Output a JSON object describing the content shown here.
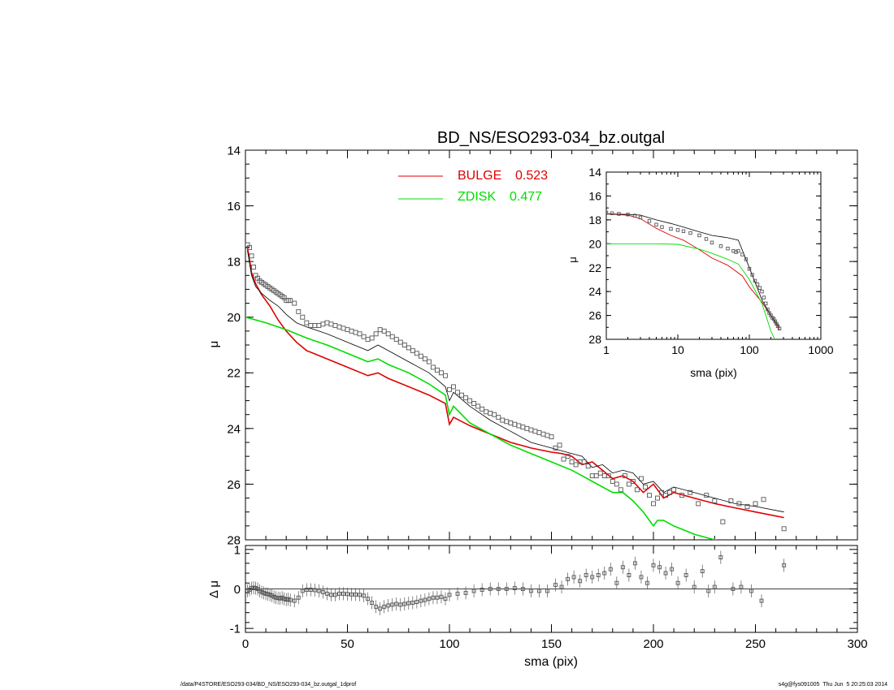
{
  "footer": {
    "left": "/data/P4STORE/ESO293-034/BD_NS/ESO293-034_bz.outgal_1dprof",
    "right": "s4g@fys091005  Thu Jun  5 20:25:03 2014"
  },
  "colors": {
    "bulge": "#e00000",
    "disk": "#00dd00",
    "model": "#000000",
    "data": "#555555"
  },
  "chart_data": [
    {
      "type": "scatter",
      "title": "BD_NS/ESO293-034_bz.outgal",
      "xlabel": "",
      "ylabel": "μ",
      "xlim": [
        0,
        300
      ],
      "ylim": [
        28,
        14
      ],
      "y_reversed": true,
      "x_ticks": [
        0,
        50,
        100,
        150,
        200,
        250,
        300
      ],
      "y_ticks": [
        14,
        16,
        18,
        20,
        22,
        24,
        26,
        28
      ],
      "legend": [
        {
          "name": "BULGE",
          "value": "0.523",
          "color": "#e00000"
        },
        {
          "name": "ZDISK",
          "value": "0.477",
          "color": "#00dd00"
        }
      ],
      "legend_position": "top-center",
      "series": [
        {
          "name": "BULGE",
          "kind": "line",
          "x": [
            1,
            3,
            5,
            8,
            12,
            16,
            20,
            25,
            30,
            40,
            50,
            60,
            65,
            70,
            80,
            90,
            98,
            100,
            102,
            110,
            120,
            130,
            140,
            150,
            155,
            160,
            165,
            170,
            175,
            180,
            185,
            190,
            195,
            200,
            205,
            210,
            220,
            230,
            240,
            250,
            264
          ],
          "y": [
            17.5,
            18.4,
            18.8,
            19.2,
            19.6,
            20.1,
            20.5,
            20.9,
            21.2,
            21.5,
            21.8,
            22.1,
            22.0,
            22.2,
            22.5,
            22.8,
            23.1,
            23.85,
            23.6,
            23.9,
            24.2,
            24.5,
            24.7,
            24.85,
            24.9,
            25.0,
            25.3,
            25.2,
            25.5,
            25.8,
            25.7,
            25.9,
            26.3,
            26.0,
            26.5,
            26.3,
            26.5,
            26.7,
            26.85,
            27.0,
            27.2
          ]
        },
        {
          "name": "ZDISK",
          "kind": "line",
          "x": [
            0,
            10,
            20,
            30,
            40,
            50,
            60,
            65,
            70,
            80,
            90,
            98,
            100,
            102,
            110,
            120,
            130,
            140,
            150,
            160,
            165,
            170,
            180,
            185,
            190,
            195,
            200,
            202,
            205,
            210,
            220,
            230,
            250,
            264
          ],
          "y": [
            20.0,
            20.2,
            20.45,
            20.75,
            21.0,
            21.3,
            21.6,
            21.5,
            21.7,
            22.0,
            22.4,
            22.8,
            23.5,
            23.2,
            23.8,
            24.2,
            24.6,
            24.9,
            25.2,
            25.5,
            25.7,
            25.9,
            26.3,
            26.3,
            26.6,
            27.0,
            27.5,
            27.3,
            27.3,
            27.5,
            27.8,
            28.0,
            28.5,
            28.9
          ]
        },
        {
          "name": "",
          "kind": "line",
          "x": [
            1,
            3,
            5,
            8,
            12,
            16,
            20,
            25,
            30,
            40,
            50,
            60,
            65,
            70,
            80,
            90,
            98,
            100,
            102,
            110,
            120,
            130,
            140,
            150,
            155,
            160,
            165,
            170,
            175,
            180,
            185,
            190,
            195,
            200,
            205,
            210,
            220,
            230,
            240,
            250,
            264
          ],
          "y": [
            17.6,
            18.5,
            18.9,
            19.15,
            19.4,
            19.6,
            19.9,
            20.2,
            20.35,
            20.6,
            20.9,
            21.2,
            21.0,
            21.2,
            21.6,
            22.0,
            22.5,
            23.0,
            22.7,
            23.2,
            23.7,
            24.1,
            24.5,
            24.7,
            24.8,
            24.9,
            25.0,
            25.4,
            25.3,
            25.6,
            25.5,
            25.6,
            26.0,
            25.9,
            26.3,
            26.1,
            26.3,
            26.5,
            26.7,
            26.8,
            27.0
          ]
        },
        {
          "name": "",
          "kind": "markers",
          "x": [
            1,
            2,
            3,
            4,
            5,
            6,
            7,
            8,
            9,
            10,
            11,
            12,
            13,
            14,
            15,
            16,
            17,
            18,
            19,
            20,
            21,
            22,
            24,
            26,
            28,
            30,
            32,
            34,
            36,
            38,
            40,
            42,
            44,
            46,
            48,
            50,
            52,
            54,
            56,
            58,
            60,
            62,
            64,
            66,
            68,
            70,
            72,
            74,
            76,
            78,
            80,
            82,
            84,
            86,
            88,
            90,
            92,
            94,
            96,
            98,
            100,
            102,
            104,
            106,
            108,
            110,
            112,
            114,
            116,
            118,
            120,
            122,
            124,
            126,
            128,
            130,
            132,
            134,
            136,
            138,
            140,
            142,
            144,
            146,
            148,
            150,
            152,
            154,
            156,
            158,
            160,
            162,
            164,
            166,
            168,
            170,
            172,
            174,
            176,
            178,
            180,
            182,
            184,
            186,
            188,
            190,
            192,
            194,
            196,
            198,
            200,
            202,
            204,
            206,
            208,
            210,
            214,
            218,
            222,
            226,
            230,
            234,
            238,
            242,
            246,
            250,
            254,
            264
          ],
          "y": [
            17.4,
            17.5,
            17.8,
            18.2,
            18.5,
            18.6,
            18.7,
            18.75,
            18.8,
            18.85,
            18.9,
            18.95,
            19.0,
            19.05,
            19.1,
            19.15,
            19.2,
            19.25,
            19.3,
            19.4,
            19.4,
            19.4,
            19.5,
            19.8,
            20.0,
            20.2,
            20.3,
            20.3,
            20.3,
            20.25,
            20.2,
            20.25,
            20.3,
            20.35,
            20.4,
            20.45,
            20.5,
            20.55,
            20.6,
            20.7,
            20.8,
            20.75,
            20.6,
            20.45,
            20.5,
            20.6,
            20.7,
            20.8,
            20.9,
            21.0,
            21.1,
            21.2,
            21.3,
            21.4,
            21.5,
            21.6,
            21.8,
            21.9,
            22.0,
            22.1,
            22.6,
            22.5,
            22.7,
            22.8,
            22.9,
            23.0,
            23.1,
            23.2,
            23.3,
            23.4,
            23.45,
            23.5,
            23.6,
            23.7,
            23.75,
            23.8,
            23.85,
            23.9,
            23.95,
            24.0,
            24.05,
            24.1,
            24.15,
            24.2,
            24.25,
            24.3,
            24.7,
            24.6,
            25.1,
            25.0,
            25.2,
            25.3,
            25.2,
            25.2,
            25.35,
            25.7,
            25.7,
            25.6,
            25.7,
            25.7,
            25.9,
            26.0,
            26.2,
            25.7,
            26.0,
            25.9,
            26.2,
            25.8,
            26.1,
            26.4,
            26.7,
            26.5,
            26.3,
            26.4,
            26.3,
            26.2,
            26.4,
            26.3,
            26.7,
            26.4,
            26.6,
            27.35,
            26.6,
            26.7,
            26.8,
            26.7,
            26.55,
            27.6
          ]
        }
      ]
    },
    {
      "type": "scatter",
      "title": "",
      "xlabel": "sma (pix)",
      "ylabel": "Δ μ",
      "xlim": [
        0,
        300
      ],
      "ylim": [
        -1.1,
        1.1
      ],
      "x_ticks": [
        0,
        50,
        100,
        150,
        200,
        250,
        300
      ],
      "y_ticks": [
        -1,
        0,
        1
      ],
      "reference_line": 0,
      "series": [
        {
          "name": "",
          "kind": "markers_with_errorbars",
          "x": [
            1,
            2,
            3,
            4,
            5,
            6,
            7,
            8,
            9,
            10,
            11,
            12,
            13,
            14,
            15,
            16,
            17,
            18,
            19,
            20,
            21,
            22,
            24,
            26,
            28,
            30,
            32,
            34,
            36,
            38,
            40,
            42,
            44,
            46,
            48,
            50,
            52,
            54,
            56,
            58,
            60,
            62,
            64,
            66,
            68,
            70,
            72,
            74,
            76,
            78,
            80,
            82,
            84,
            86,
            88,
            90,
            92,
            94,
            96,
            98,
            100,
            104,
            108,
            112,
            116,
            120,
            124,
            128,
            132,
            136,
            140,
            144,
            148,
            152,
            155,
            158,
            161,
            164,
            167,
            170,
            173,
            176,
            179,
            182,
            185,
            188,
            191,
            194,
            197,
            200,
            203,
            206,
            209,
            212,
            216,
            220,
            224,
            227,
            230,
            233,
            239,
            243,
            248,
            253,
            264
          ],
          "y": [
            -0.05,
            -0.02,
            0.02,
            0.03,
            0.02,
            0.0,
            -0.05,
            -0.08,
            -0.1,
            -0.12,
            -0.13,
            -0.15,
            -0.17,
            -0.2,
            -0.22,
            -0.23,
            -0.24,
            -0.22,
            -0.25,
            -0.27,
            -0.26,
            -0.28,
            -0.3,
            -0.22,
            -0.05,
            -0.02,
            -0.02,
            -0.03,
            -0.05,
            -0.08,
            -0.12,
            -0.15,
            -0.15,
            -0.12,
            -0.12,
            -0.13,
            -0.14,
            -0.14,
            -0.15,
            -0.17,
            -0.25,
            -0.35,
            -0.45,
            -0.5,
            -0.45,
            -0.42,
            -0.4,
            -0.38,
            -0.4,
            -0.38,
            -0.36,
            -0.35,
            -0.33,
            -0.3,
            -0.28,
            -0.25,
            -0.22,
            -0.22,
            -0.2,
            -0.25,
            -0.15,
            -0.12,
            -0.1,
            -0.05,
            -0.02,
            0.0,
            0.0,
            0.0,
            0.02,
            0.0,
            -0.05,
            -0.05,
            -0.05,
            0.1,
            0.05,
            0.25,
            0.3,
            0.2,
            0.35,
            0.3,
            0.35,
            0.4,
            0.5,
            0.15,
            0.55,
            0.35,
            0.65,
            0.3,
            0.15,
            0.6,
            0.55,
            0.4,
            0.5,
            0.15,
            0.35,
            0.05,
            0.45,
            -0.05,
            0.05,
            0.8,
            0.0,
            0.05,
            -0.05,
            -0.3,
            0.6
          ]
        }
      ]
    },
    {
      "type": "scatter",
      "title": "",
      "xlabel": "sma (pix)",
      "ylabel": "μ",
      "x_scale": "log",
      "xlim": [
        1,
        1000
      ],
      "ylim": [
        28,
        14
      ],
      "y_reversed": true,
      "x_ticks": [
        1,
        10,
        100,
        1000
      ],
      "y_ticks": [
        14,
        16,
        18,
        20,
        22,
        24,
        26,
        28
      ],
      "series": [
        {
          "name": "BULGE",
          "kind": "line",
          "x": [
            1,
            2,
            3,
            5,
            8,
            12,
            20,
            30,
            50,
            80,
            100,
            150,
            200,
            264
          ],
          "y": [
            17.5,
            17.6,
            17.9,
            18.7,
            19.3,
            19.7,
            20.5,
            21.2,
            21.8,
            22.7,
            23.6,
            24.9,
            26.0,
            27.2
          ]
        },
        {
          "name": "ZDISK",
          "kind": "line",
          "x": [
            1,
            5,
            10,
            20,
            30,
            50,
            70,
            100,
            150,
            200,
            264
          ],
          "y": [
            20.0,
            20.0,
            20.05,
            20.45,
            20.8,
            21.3,
            21.7,
            23.0,
            25.0,
            27.3,
            28.9
          ]
        },
        {
          "name": "",
          "kind": "line",
          "x": [
            1,
            2,
            3,
            5,
            8,
            12,
            20,
            30,
            50,
            70,
            100,
            150,
            200,
            264
          ],
          "y": [
            17.5,
            17.55,
            17.6,
            18.0,
            18.3,
            18.6,
            19.0,
            19.3,
            19.5,
            19.7,
            22.0,
            24.7,
            26.0,
            27.0
          ]
        },
        {
          "name": "",
          "kind": "markers",
          "x": [
            1,
            1.2,
            1.5,
            2,
            2.5,
            3,
            4,
            5,
            6,
            8,
            10,
            12,
            15,
            20,
            25,
            30,
            40,
            50,
            60,
            65,
            70,
            80,
            90,
            100,
            110,
            120,
            130,
            140,
            150,
            160,
            170,
            180,
            190,
            200,
            210,
            220,
            230,
            240,
            250,
            264
          ],
          "y": [
            17.4,
            17.45,
            17.5,
            17.55,
            17.65,
            17.8,
            18.1,
            18.4,
            18.6,
            18.75,
            18.85,
            18.95,
            19.1,
            19.3,
            19.6,
            19.9,
            20.2,
            20.4,
            20.6,
            20.7,
            20.6,
            20.9,
            21.3,
            22.1,
            22.6,
            23.1,
            23.4,
            23.7,
            24.0,
            24.5,
            25.0,
            25.5,
            25.8,
            26.0,
            26.2,
            26.3,
            26.5,
            26.7,
            26.9,
            27.1
          ]
        }
      ]
    }
  ]
}
